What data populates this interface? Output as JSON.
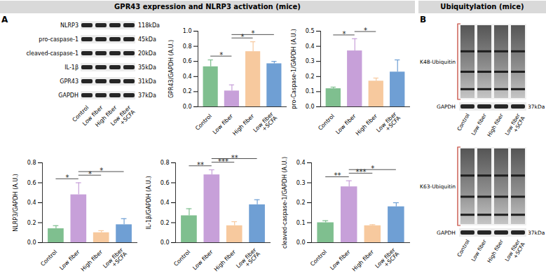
{
  "panels": [
    {
      "letter": "A",
      "title": "GPR43 expression and NLRP3 activation (mice)",
      "blot": {
        "lanes": [
          "Control",
          "Low fiber",
          "High fiber",
          "Low fiber\n+SCFA"
        ],
        "rows": [
          {
            "label": "NLRP3",
            "size": "118kDa"
          },
          {
            "label": "pro-caspase-1",
            "size": "45kDa"
          },
          {
            "label": "cleaved-caspase-1",
            "size": "20kDa"
          },
          {
            "label": "IL-1β",
            "size": "35kDa"
          },
          {
            "label": "GPR43",
            "size": "31kDa"
          },
          {
            "label": "GAPDH",
            "size": "37kDa"
          }
        ]
      }
    },
    {
      "letter": "B",
      "title": "Ubiquitylation (mice)",
      "lanes": [
        "Control",
        "Low fiber",
        "High fiber",
        "Low fiber\n+SCFA"
      ],
      "blots": [
        {
          "label": "K48-Ubiquitin",
          "loading": "GAPDH",
          "size": "37kDa"
        },
        {
          "label": "K63-Ubiquitin",
          "loading": "GAPDH",
          "size": "37kDa"
        }
      ]
    }
  ],
  "chart_data": [
    {
      "type": "bar",
      "y_label": "GPR43/GAPDH (A.U.)",
      "categories": [
        "Control",
        "Low fiber",
        "High fiber",
        "Low fiber\n+SCFA"
      ],
      "values": [
        0.53,
        0.21,
        0.73,
        0.57
      ],
      "errors": [
        0.09,
        0.08,
        0.13,
        0.03
      ],
      "colors": [
        "#7fbf8f",
        "#c7a0d9",
        "#f7c99e",
        "#6f9fd4"
      ],
      "ylim": [
        0,
        1
      ],
      "yticks": [
        {
          "value": 0,
          "label": "0.0"
        },
        0.2,
        0.4,
        0.6,
        0.8,
        {
          "value": 1,
          "label": "1.0"
        }
      ],
      "significance": [
        {
          "from": "Control",
          "to": "Low fiber",
          "label": "*"
        },
        {
          "from": "Low fiber",
          "to": "High fiber",
          "label": "*"
        },
        {
          "from": "Low fiber",
          "to": "Low fiber\n+SCFA",
          "label": "*"
        }
      ]
    },
    {
      "type": "bar",
      "y_label": "pro-Caspase-1/GAPDH (A.U.)",
      "categories": [
        "Control",
        "Low fiber",
        "High fiber",
        "Low fiber\n+SCFA"
      ],
      "values": [
        0.12,
        0.37,
        0.17,
        0.23
      ],
      "errors": [
        0.01,
        0.08,
        0.02,
        0.08
      ],
      "colors": [
        "#7fbf8f",
        "#c7a0d9",
        "#f7c99e",
        "#6f9fd4"
      ],
      "ylim": [
        0,
        0.5
      ],
      "yticks": [
        {
          "value": 0,
          "label": "0.0"
        },
        0.1,
        0.2,
        0.3,
        0.4,
        0.5
      ],
      "significance": [
        {
          "from": "Control",
          "to": "Low fiber",
          "label": "*"
        },
        {
          "from": "Low fiber",
          "to": "High fiber",
          "label": "*"
        }
      ]
    },
    {
      "type": "bar",
      "y_label": "NLRP3/GAPDH (A.U.)",
      "categories": [
        "Control",
        "Low fiber",
        "High fiber",
        "Low fiber\n+SCFA"
      ],
      "values": [
        0.14,
        0.48,
        0.1,
        0.18
      ],
      "errors": [
        0.03,
        0.12,
        0.02,
        0.06
      ],
      "colors": [
        "#7fbf8f",
        "#c7a0d9",
        "#f7c99e",
        "#6f9fd4"
      ],
      "ylim": [
        0,
        0.8
      ],
      "yticks": [
        {
          "value": 0,
          "label": "0.0"
        },
        0.2,
        0.4,
        0.6,
        0.8
      ],
      "significance": [
        {
          "from": "Control",
          "to": "Low fiber",
          "label": "*"
        },
        {
          "from": "Low fiber",
          "to": "High fiber",
          "label": "*"
        },
        {
          "from": "Low fiber",
          "to": "Low fiber\n+SCFA",
          "label": "*"
        }
      ]
    },
    {
      "type": "bar",
      "y_label": "IL-1β/GAPDH (A.U.)",
      "categories": [
        "Control",
        "Low fiber",
        "High fiber",
        "Low fiber\n+SCFA"
      ],
      "values": [
        0.27,
        0.68,
        0.17,
        0.38
      ],
      "errors": [
        0.07,
        0.05,
        0.04,
        0.05
      ],
      "colors": [
        "#7fbf8f",
        "#c7a0d9",
        "#f7c99e",
        "#6f9fd4"
      ],
      "ylim": [
        0,
        0.8
      ],
      "yticks": [
        {
          "value": 0,
          "label": "0.0"
        },
        0.2,
        0.4,
        0.6,
        0.8
      ],
      "significance": [
        {
          "from": "Control",
          "to": "Low fiber",
          "label": "**"
        },
        {
          "from": "Low fiber",
          "to": "High fiber",
          "label": "***"
        },
        {
          "from": "Low fiber",
          "to": "Low fiber\n+SCFA",
          "label": "**"
        }
      ]
    },
    {
      "type": "bar",
      "y_label": "cleaved-caspase-1/GAPDH (A.U.)",
      "categories": [
        "Control",
        "Low fiber",
        "High fiber",
        "Low fiber\n+SCFA"
      ],
      "values": [
        0.1,
        0.28,
        0.085,
        0.18
      ],
      "errors": [
        0.01,
        0.03,
        0.005,
        0.02
      ],
      "colors": [
        "#7fbf8f",
        "#c7a0d9",
        "#f7c99e",
        "#6f9fd4"
      ],
      "ylim": [
        0,
        0.4
      ],
      "yticks": [
        {
          "value": 0,
          "label": "0.0"
        },
        0.1,
        0.2,
        0.3,
        0.4
      ],
      "significance": [
        {
          "from": "Control",
          "to": "Low fiber",
          "label": "**"
        },
        {
          "from": "Low fiber",
          "to": "High fiber",
          "label": "***"
        },
        {
          "from": "Low fiber",
          "to": "Low fiber\n+SCFA",
          "label": "*"
        }
      ]
    }
  ]
}
